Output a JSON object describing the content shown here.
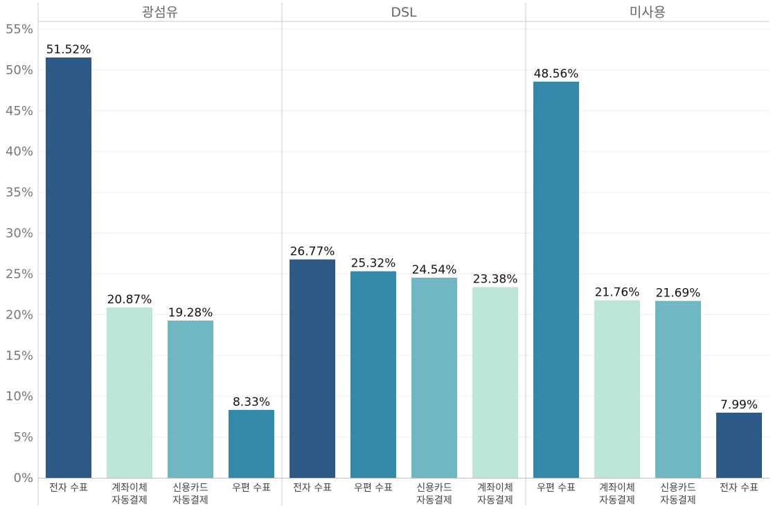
{
  "chart_data": {
    "type": "bar",
    "y_unit": "%",
    "ylim": [
      0,
      55
    ],
    "y_ticks": [
      0,
      5,
      10,
      15,
      20,
      25,
      30,
      35,
      40,
      45,
      50,
      55
    ],
    "grid": true,
    "colors": {
      "전자 수표": "#2d5985",
      "계좌이체 자동결제": "#bde4d9",
      "신용카드 자동결제": "#6fb7c3",
      "우편 수표": "#3589a8"
    },
    "panels": [
      {
        "title": "광섬유",
        "categories": [
          "전자 수표",
          "계좌이체 자동결제",
          "신용카드 자동결제",
          "우편 수표"
        ],
        "values": [
          51.52,
          20.87,
          19.28,
          8.33
        ],
        "data_labels": [
          "51.52%",
          "20.87%",
          "19.28%",
          "8.33%"
        ]
      },
      {
        "title": "DSL",
        "categories": [
          "전자 수표",
          "우편 수표",
          "신용카드 자동결제",
          "계좌이체 자동결제"
        ],
        "values": [
          26.77,
          25.32,
          24.54,
          23.38
        ],
        "data_labels": [
          "26.77%",
          "25.32%",
          "24.54%",
          "23.38%"
        ]
      },
      {
        "title": "미사용",
        "categories": [
          "우편 수표",
          "계좌이체 자동결제",
          "신용카드 자동결제",
          "전자 수표"
        ],
        "values": [
          48.56,
          21.76,
          21.69,
          7.99
        ],
        "data_labels": [
          "48.56%",
          "21.76%",
          "21.69%",
          "7.99%"
        ]
      }
    ]
  }
}
